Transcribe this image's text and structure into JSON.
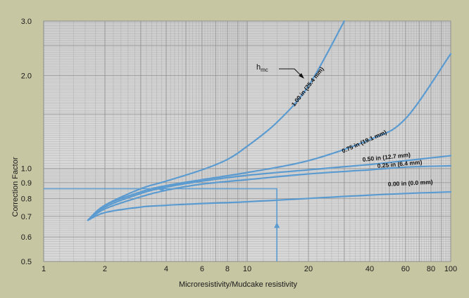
{
  "chart_data": {
    "type": "line",
    "title": "",
    "xlabel": "Microresistivity/Mudcake resistivity",
    "ylabel": "Correction Factor",
    "x_scale": "log",
    "y_scale": "log",
    "xlim": [
      1,
      100
    ],
    "ylim": [
      0.5,
      3.0
    ],
    "x_ticks": [
      1,
      2,
      4,
      6,
      8,
      10,
      20,
      40,
      60,
      80,
      100
    ],
    "x_tick_labels": [
      "1",
      "2",
      "4",
      "6",
      "8",
      "10",
      "20",
      "40",
      "60",
      "80",
      "100"
    ],
    "y_ticks": [
      0.5,
      0.6,
      0.7,
      0.8,
      0.9,
      1.0,
      2.0,
      3.0
    ],
    "y_tick_labels": [
      "0.5",
      "0.6",
      "0.7",
      "0.8",
      "0.9",
      "1.0",
      "2.0",
      "3.0"
    ],
    "grid": true,
    "annotation": {
      "text": "h",
      "sub": "mc"
    },
    "series": [
      {
        "name": "1.00 in (25.4 mm)",
        "x": [
          1.65,
          2,
          3,
          4,
          6,
          8,
          10,
          14,
          20,
          30
        ],
        "y": [
          0.68,
          0.76,
          0.86,
          0.91,
          0.99,
          1.07,
          1.18,
          1.41,
          1.85,
          3.0
        ]
      },
      {
        "name": "0.75 in (19.1 mm)",
        "x": [
          1.65,
          2,
          3,
          4,
          6,
          10,
          20,
          40,
          60,
          100
        ],
        "y": [
          0.68,
          0.76,
          0.84,
          0.88,
          0.92,
          0.97,
          1.06,
          1.24,
          1.45,
          2.35
        ]
      },
      {
        "name": "0.50 in (12.7 mm)",
        "x": [
          1.65,
          2,
          3,
          4,
          6,
          10,
          20,
          40,
          60,
          100
        ],
        "y": [
          0.68,
          0.75,
          0.83,
          0.87,
          0.91,
          0.95,
          0.99,
          1.03,
          1.06,
          1.1
        ]
      },
      {
        "name": "0.25 in (6.4 mm)",
        "x": [
          1.65,
          2,
          3,
          4,
          6,
          10,
          20,
          40,
          60,
          100
        ],
        "y": [
          0.68,
          0.74,
          0.81,
          0.85,
          0.89,
          0.92,
          0.96,
          0.99,
          1.01,
          1.02
        ]
      },
      {
        "name": "0.00 in (0.0 mm)",
        "x": [
          1.65,
          2,
          3,
          4,
          6,
          10,
          20,
          40,
          60,
          100
        ],
        "y": [
          0.68,
          0.72,
          0.75,
          0.76,
          0.77,
          0.78,
          0.8,
          0.82,
          0.83,
          0.84
        ]
      }
    ],
    "example_path": {
      "x": [
        14,
        14,
        1
      ],
      "y": [
        0.5,
        0.86,
        0.86
      ]
    }
  },
  "colors": {
    "background": "#c6c6a3",
    "plot": "#d8d8d8",
    "grid": "#8c8c8c",
    "curve": "#5b9bd0"
  }
}
